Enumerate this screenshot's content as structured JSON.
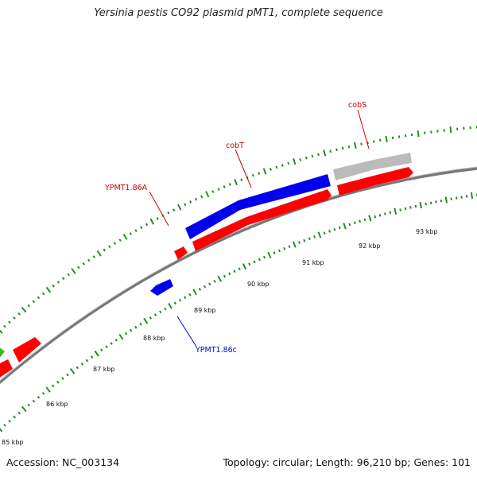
{
  "title": "Yersinia pestis CO92 plasmid pMT1, complete sequence",
  "footer": {
    "accession": "Accession: NC_003134",
    "summary": "Topology: circular; Length: 96,210 bp; Genes: 101"
  },
  "colors": {
    "forward_gene": "#ff0000",
    "reverse_gene": "#0000ee",
    "other_feature": "#bbbbbb",
    "green_feature": "#33bb22",
    "tick": "#2a8a2a",
    "backbone": "#888888",
    "forward_label": "#cc0000",
    "reverse_label": "#0000cc"
  },
  "tick_labels": [
    "85 kbp",
    "86 kbp",
    "87 kbp",
    "88 kbp",
    "89 kbp",
    "90 kbp",
    "91 kbp",
    "92 kbp",
    "93 kbp"
  ],
  "gene_labels": [
    {
      "name": "YPMT1.86A",
      "strand": "forward"
    },
    {
      "name": "cobT",
      "strand": "forward"
    },
    {
      "name": "cobS",
      "strand": "forward"
    },
    {
      "name": "YPMT1.86c",
      "strand": "reverse"
    }
  ]
}
